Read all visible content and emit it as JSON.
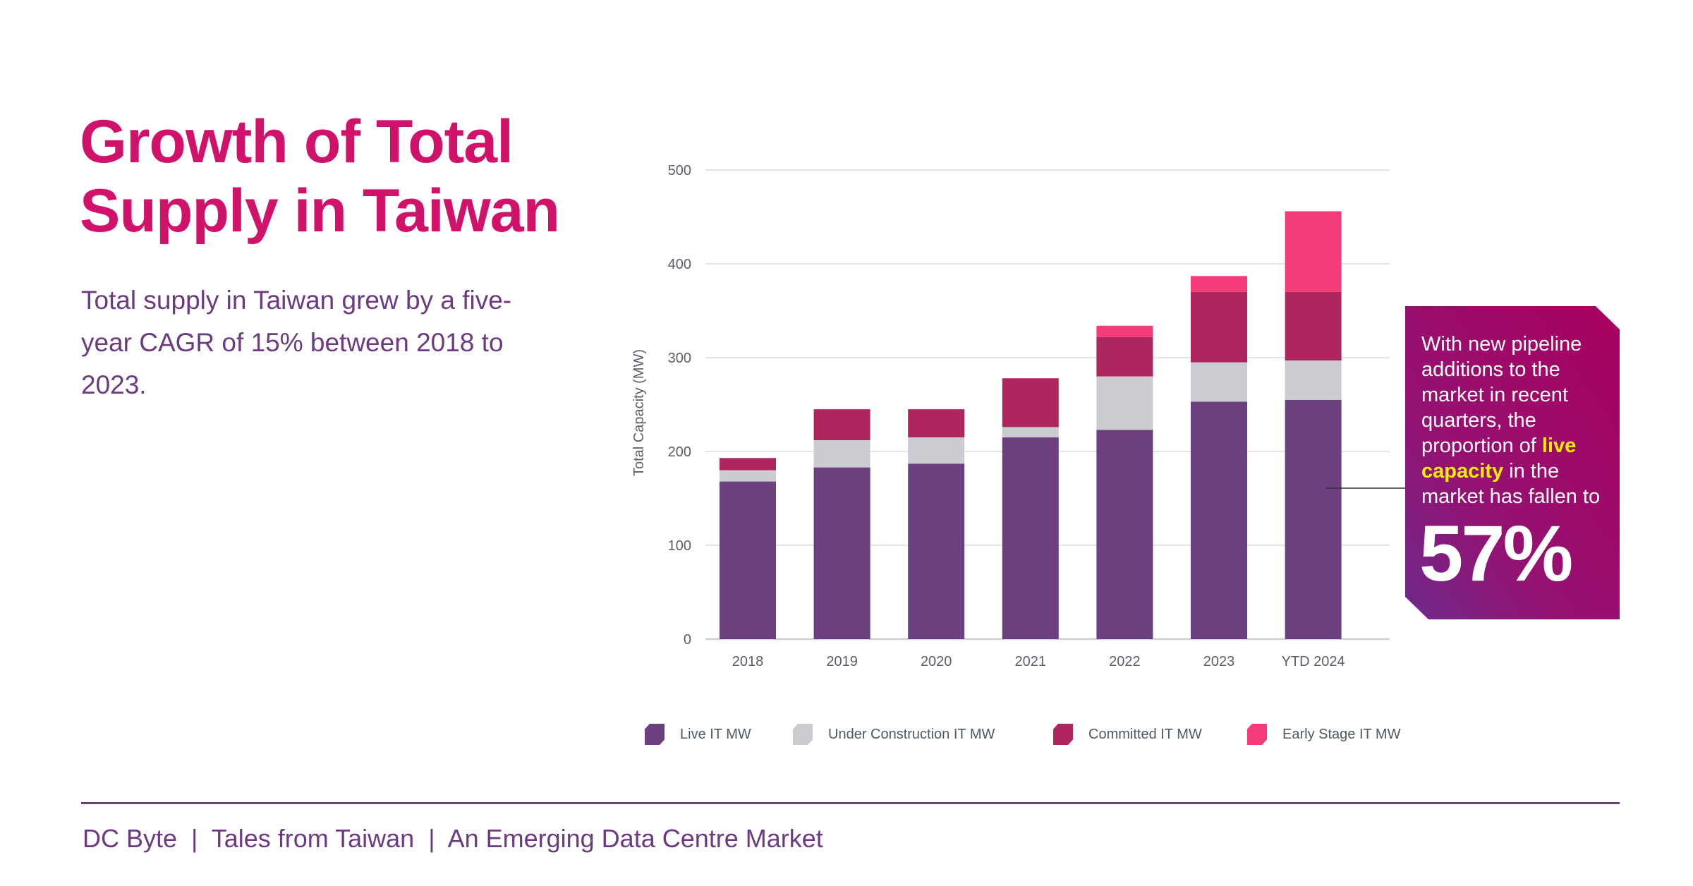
{
  "title_lines": [
    "Growth of Total",
    "Supply in Taiwan"
  ],
  "subtitle": "Total supply in Taiwan grew by a five-year CAGR of 15% between 2018 to 2023.",
  "callout": {
    "text_before": "With new pipeline additions to the market in recent quarters, the proportion of ",
    "highlight": "live capacity",
    "text_after": " in the market has fallen to",
    "big_value": "57%",
    "highlight_color": "#f5ec00"
  },
  "footer": "DC Byte  |  Tales from Taiwan  |  An Emerging Data Centre Market",
  "chart_data": {
    "type": "bar",
    "stacked": true,
    "ylabel": "Total Capacity (MW)",
    "xlabel": "",
    "ylim": [
      0,
      500
    ],
    "yticks": [
      0,
      100,
      200,
      300,
      400,
      500
    ],
    "grid": true,
    "legend_position": "bottom",
    "categories": [
      "2018",
      "2019",
      "2020",
      "2021",
      "2022",
      "2023",
      "YTD 2024"
    ],
    "series": [
      {
        "name": "Live IT MW",
        "color": "#6c407f",
        "values": [
          168,
          183,
          187,
          215,
          223,
          253,
          255
        ]
      },
      {
        "name": "Under Construction IT MW",
        "color": "#cccbd1",
        "values": [
          12,
          29,
          28,
          11,
          57,
          42,
          42
        ]
      },
      {
        "name": "Committed IT MW",
        "color": "#ad2660",
        "values": [
          13,
          33,
          30,
          52,
          42,
          75,
          73
        ]
      },
      {
        "name": "Early Stage IT MW",
        "color": "#f53c78",
        "values": [
          0,
          0,
          0,
          0,
          12,
          17,
          86
        ]
      }
    ]
  }
}
